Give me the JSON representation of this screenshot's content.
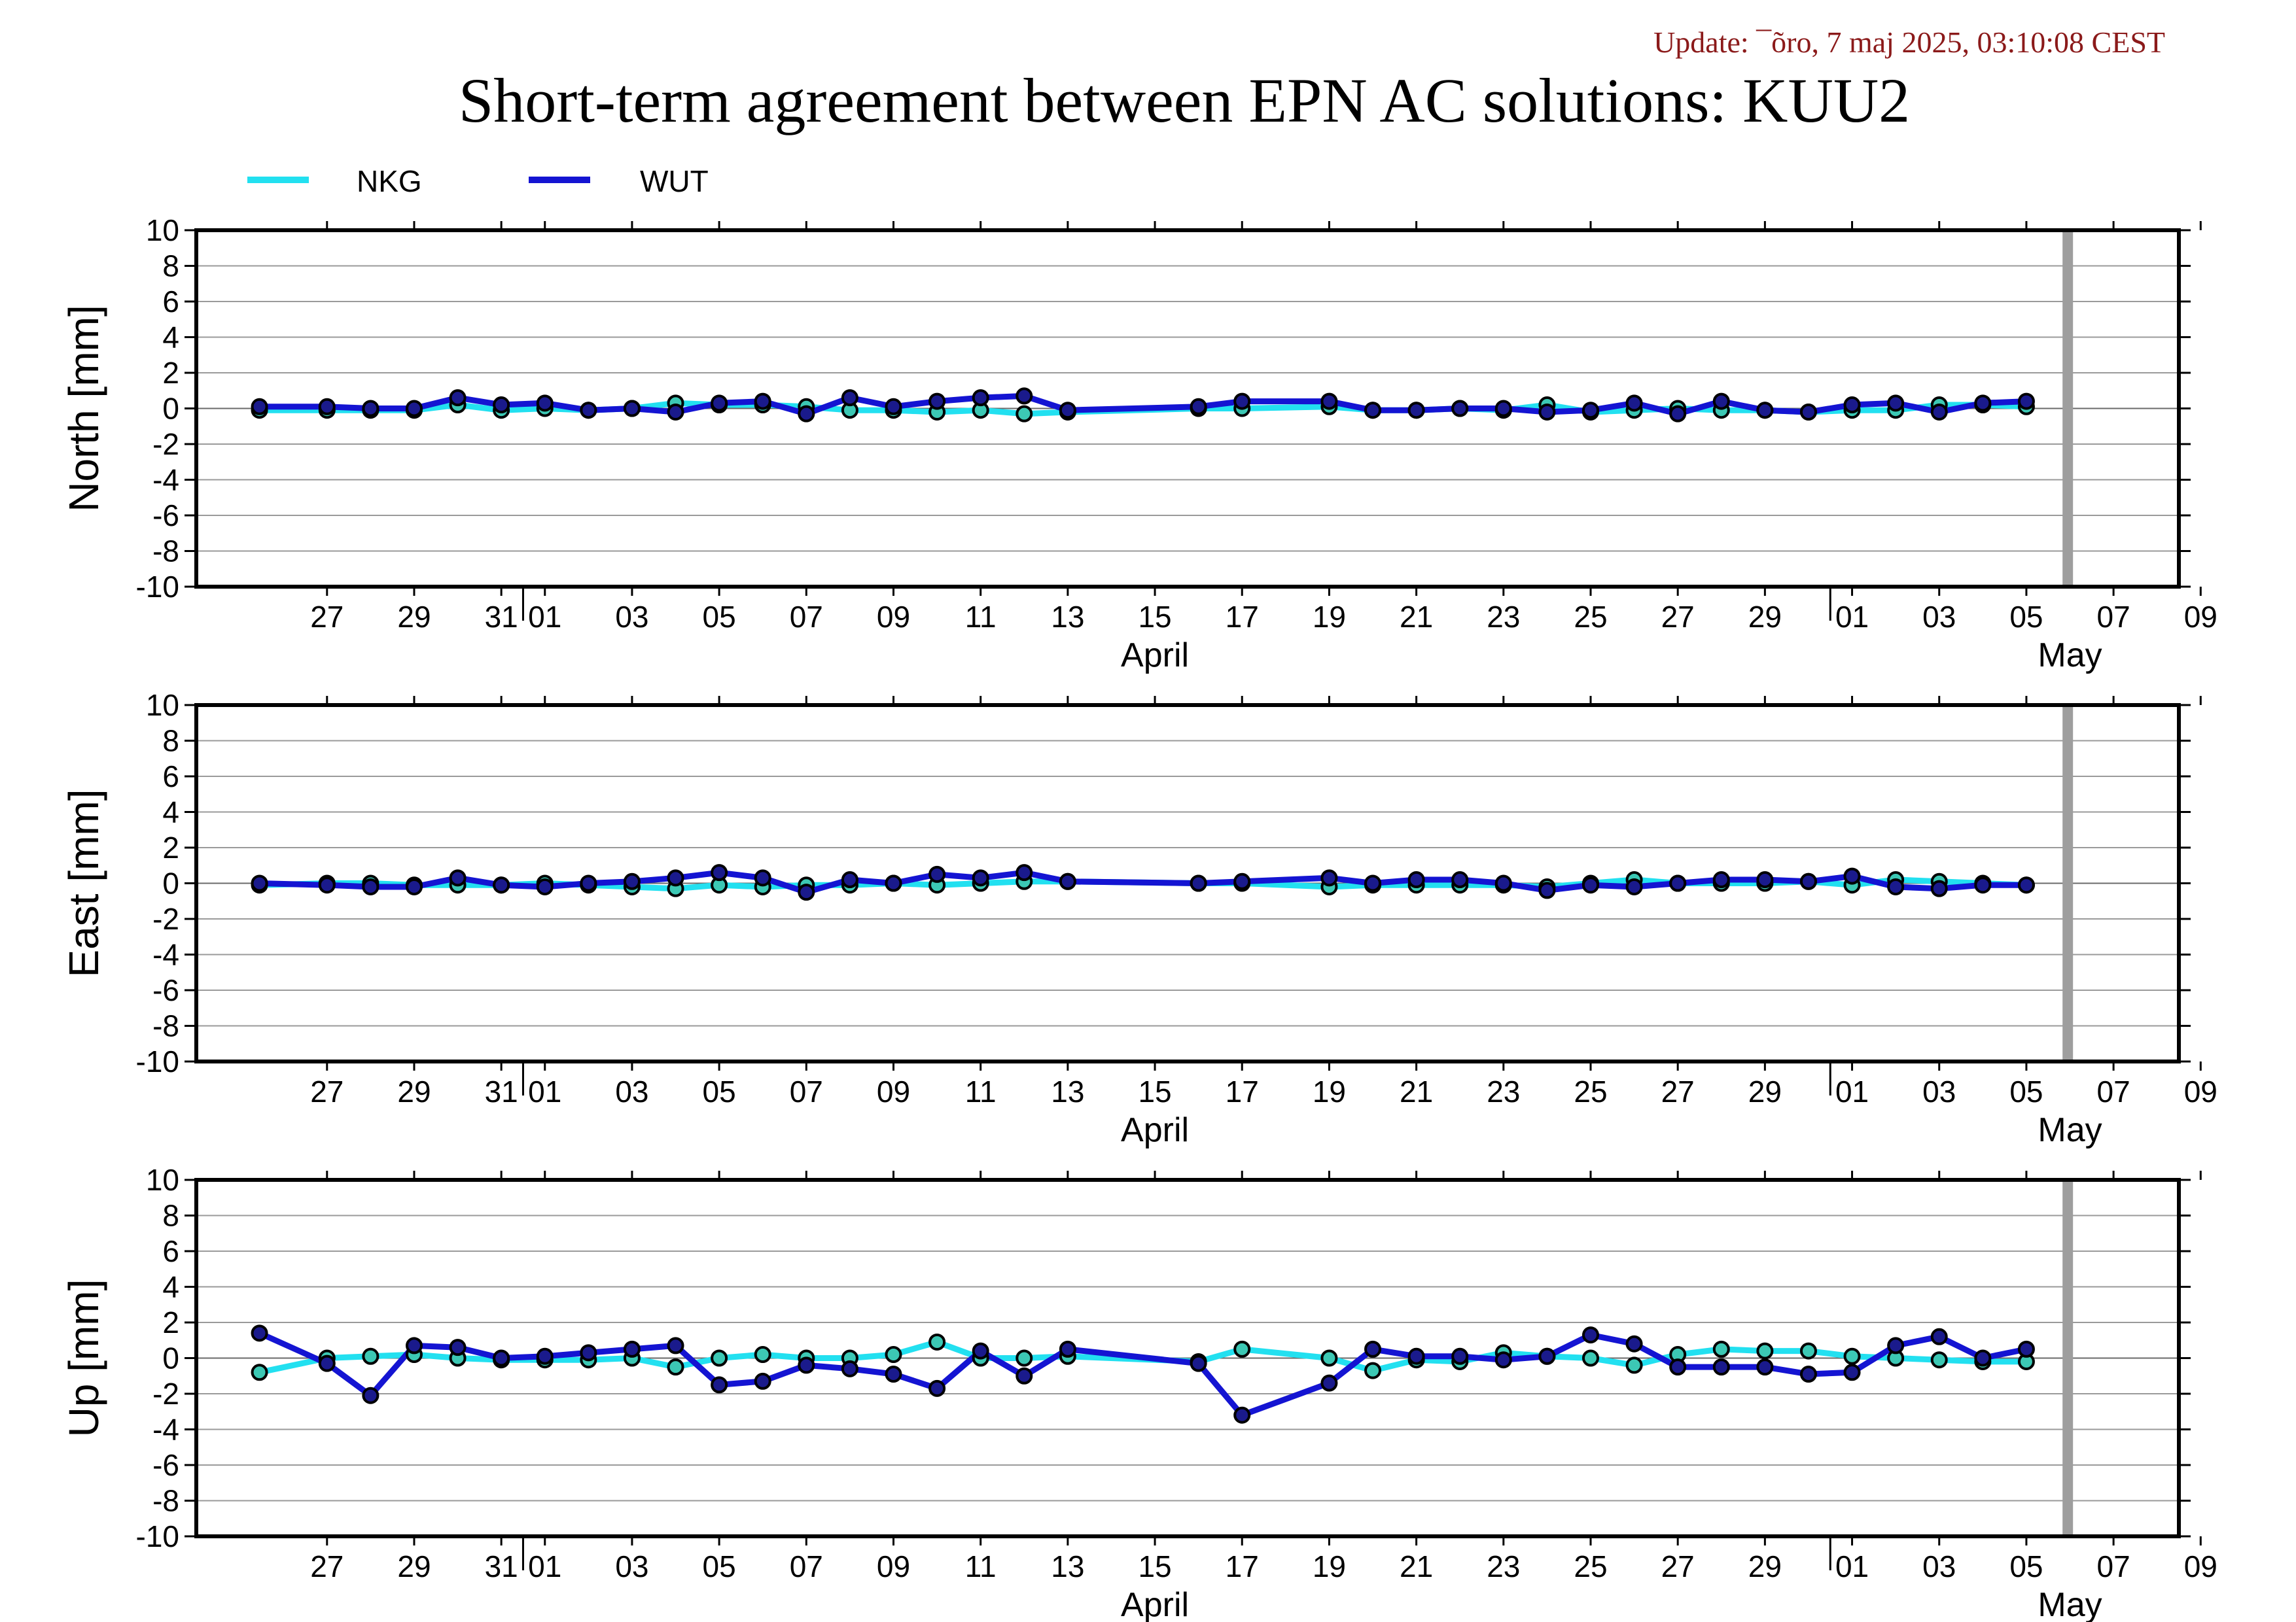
{
  "update_text": "Update: ¯õro, 7 maj 2025, 03:10:08 CEST",
  "title": "Short-term agreement between EPN AC solutions: KUU2",
  "chart_data": {
    "type": "line",
    "day_labels": [
      "27",
      "29",
      "31",
      "01",
      "03",
      "05",
      "07",
      "09",
      "11",
      "13",
      "15",
      "17",
      "19",
      "21",
      "23",
      "25",
      "27",
      "29",
      "01",
      "03",
      "05",
      "07",
      "09"
    ],
    "month_labels": [
      "April",
      "May"
    ],
    "series": [
      {
        "name": "NKG",
        "color": "#22e0f0"
      },
      {
        "name": "WUT",
        "color": "#1414d2"
      }
    ],
    "panels": [
      {
        "ylabel": "North [mm]",
        "ylim": [
          -10,
          10
        ],
        "yticks": [
          10,
          8,
          6,
          4,
          2,
          0,
          -2,
          -4,
          -6,
          -8,
          -10
        ],
        "x": [
          "2025-03-26",
          "2025-03-27",
          "2025-03-28",
          "2025-03-29",
          "2025-03-30",
          "2025-03-31",
          "2025-04-01",
          "2025-04-02",
          "2025-04-03",
          "2025-04-04",
          "2025-04-05",
          "2025-04-06",
          "2025-04-07",
          "2025-04-08",
          "2025-04-09",
          "2025-04-10",
          "2025-04-11",
          "2025-04-12",
          "2025-04-13",
          "2025-04-16",
          "2025-04-17",
          "2025-04-19",
          "2025-04-20",
          "2025-04-21",
          "2025-04-22",
          "2025-04-23",
          "2025-04-24",
          "2025-04-25",
          "2025-04-26",
          "2025-04-27",
          "2025-04-28",
          "2025-04-29",
          "2025-04-30",
          "2025-05-01",
          "2025-05-02",
          "2025-05-03",
          "2025-05-04",
          "2025-05-05"
        ],
        "NKG": [
          -0.1,
          -0.1,
          -0.1,
          -0.1,
          0.2,
          -0.1,
          0.0,
          -0.1,
          0.0,
          0.3,
          0.2,
          0.2,
          0.1,
          -0.1,
          -0.1,
          -0.2,
          -0.1,
          -0.3,
          -0.2,
          0.0,
          0.0,
          0.1,
          -0.1,
          -0.1,
          0.0,
          -0.1,
          0.2,
          -0.2,
          -0.1,
          0.0,
          -0.1,
          -0.1,
          -0.2,
          -0.1,
          -0.1,
          0.2,
          0.2,
          0.1
        ],
        "WUT": [
          0.1,
          0.1,
          0.0,
          0.0,
          0.6,
          0.2,
          0.3,
          -0.1,
          0.0,
          -0.2,
          0.3,
          0.4,
          -0.3,
          0.6,
          0.1,
          0.4,
          0.6,
          0.7,
          -0.1,
          0.1,
          0.4,
          0.4,
          -0.1,
          -0.1,
          0.0,
          0.0,
          -0.2,
          -0.1,
          0.3,
          -0.3,
          0.4,
          -0.1,
          -0.2,
          0.2,
          0.3,
          -0.2,
          0.3,
          0.4
        ]
      },
      {
        "ylabel": "East [mm]",
        "ylim": [
          -10,
          10
        ],
        "yticks": [
          10,
          8,
          6,
          4,
          2,
          0,
          -2,
          -4,
          -6,
          -8,
          -10
        ],
        "x": [
          "2025-03-26",
          "2025-03-27",
          "2025-03-28",
          "2025-03-29",
          "2025-03-30",
          "2025-03-31",
          "2025-04-01",
          "2025-04-02",
          "2025-04-03",
          "2025-04-04",
          "2025-04-05",
          "2025-04-06",
          "2025-04-07",
          "2025-04-08",
          "2025-04-09",
          "2025-04-10",
          "2025-04-11",
          "2025-04-12",
          "2025-04-13",
          "2025-04-16",
          "2025-04-17",
          "2025-04-19",
          "2025-04-20",
          "2025-04-21",
          "2025-04-22",
          "2025-04-23",
          "2025-04-24",
          "2025-04-25",
          "2025-04-26",
          "2025-04-27",
          "2025-04-28",
          "2025-04-29",
          "2025-04-30",
          "2025-05-01",
          "2025-05-02",
          "2025-05-03",
          "2025-05-04",
          "2025-05-05"
        ],
        "NKG": [
          -0.1,
          0.0,
          0.0,
          -0.1,
          -0.1,
          -0.1,
          0.0,
          -0.1,
          -0.2,
          -0.3,
          -0.1,
          -0.2,
          -0.1,
          -0.1,
          0.0,
          -0.1,
          0.0,
          0.1,
          0.1,
          0.0,
          0.0,
          -0.2,
          -0.1,
          -0.1,
          -0.1,
          -0.1,
          -0.2,
          0.0,
          0.2,
          0.0,
          0.0,
          0.0,
          0.1,
          -0.1,
          0.2,
          0.1,
          0.0,
          -0.1
        ],
        "WUT": [
          0.0,
          -0.1,
          -0.2,
          -0.2,
          0.3,
          -0.1,
          -0.2,
          0.0,
          0.1,
          0.3,
          0.6,
          0.3,
          -0.5,
          0.2,
          0.0,
          0.5,
          0.3,
          0.6,
          0.1,
          0.0,
          0.1,
          0.3,
          0.0,
          0.2,
          0.2,
          0.0,
          -0.4,
          -0.1,
          -0.2,
          0.0,
          0.2,
          0.2,
          0.1,
          0.4,
          -0.2,
          -0.3,
          -0.1,
          -0.1
        ]
      },
      {
        "ylabel": "Up [mm]",
        "ylim": [
          -10,
          10
        ],
        "yticks": [
          10,
          8,
          6,
          4,
          2,
          0,
          -2,
          -4,
          -6,
          -8,
          -10
        ],
        "x": [
          "2025-03-26",
          "2025-03-27",
          "2025-03-28",
          "2025-03-29",
          "2025-03-30",
          "2025-03-31",
          "2025-04-01",
          "2025-04-02",
          "2025-04-03",
          "2025-04-04",
          "2025-04-05",
          "2025-04-06",
          "2025-04-07",
          "2025-04-08",
          "2025-04-09",
          "2025-04-10",
          "2025-04-11",
          "2025-04-12",
          "2025-04-13",
          "2025-04-16",
          "2025-04-17",
          "2025-04-19",
          "2025-04-20",
          "2025-04-21",
          "2025-04-22",
          "2025-04-23",
          "2025-04-24",
          "2025-04-25",
          "2025-04-26",
          "2025-04-27",
          "2025-04-28",
          "2025-04-29",
          "2025-04-30",
          "2025-05-01",
          "2025-05-02",
          "2025-05-03",
          "2025-05-04",
          "2025-05-05"
        ],
        "NKG": [
          -0.8,
          0.0,
          0.1,
          0.2,
          0.0,
          -0.1,
          -0.1,
          -0.1,
          0.0,
          -0.5,
          0.0,
          0.2,
          0.0,
          0.0,
          0.2,
          0.9,
          0.0,
          0.0,
          0.1,
          -0.2,
          0.5,
          0.0,
          -0.7,
          -0.1,
          -0.2,
          0.3,
          0.1,
          0.0,
          -0.4,
          0.2,
          0.5,
          0.4,
          0.4,
          0.1,
          0.0,
          -0.1,
          -0.2,
          -0.2
        ],
        "WUT": [
          1.4,
          -0.3,
          -2.1,
          0.7,
          0.6,
          0.0,
          0.1,
          0.3,
          0.5,
          0.7,
          -1.5,
          -1.3,
          -0.4,
          -0.6,
          -0.9,
          -1.7,
          0.4,
          -1.0,
          0.5,
          -0.3,
          -3.2,
          -1.4,
          0.5,
          0.1,
          0.1,
          -0.1,
          0.1,
          1.3,
          0.8,
          -0.5,
          -0.5,
          -0.5,
          -0.9,
          -0.8,
          0.7,
          1.2,
          0.0,
          0.5
        ]
      }
    ]
  }
}
